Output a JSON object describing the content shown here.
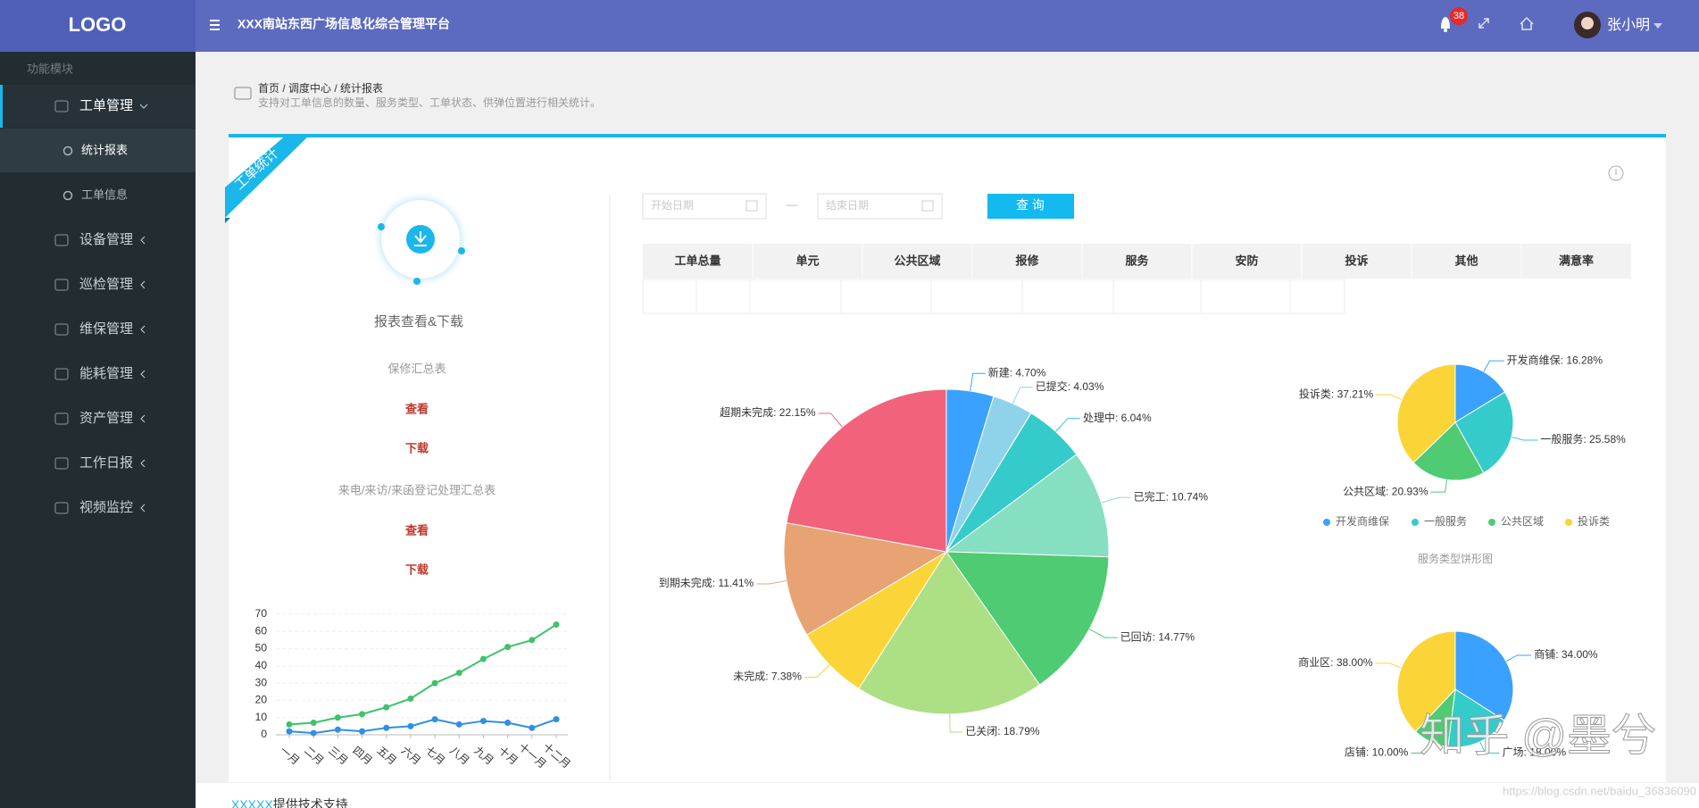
{
  "header": {
    "logo": "LOGO",
    "title": "XXX南站东西广场信息化综合管理平台",
    "badge": "38",
    "user": "张小明"
  },
  "sidebar": {
    "section": "功能模块",
    "menu": [
      {
        "label": "工单管理",
        "children": [
          "统计报表",
          "工单信息"
        ]
      },
      {
        "label": "设备管理"
      },
      {
        "label": "巡检管理"
      },
      {
        "label": "维保管理"
      },
      {
        "label": "能耗管理"
      },
      {
        "label": "资产管理"
      },
      {
        "label": "工作日报"
      },
      {
        "label": "视频监控"
      }
    ]
  },
  "breadcrumb": "首页 / 调度中心 / 统计报表",
  "description": "支持对工单信息的数量、服务类型、工单状态、供弹位置进行相关统计。",
  "ribbon": "工单统计",
  "reports": {
    "heading": "报表查看&下载",
    "items": [
      {
        "name": "保修汇总表",
        "view": "查看",
        "download": "下载"
      },
      {
        "name": "来电/来访/来函登记处理汇总表",
        "view": "查看",
        "download": "下载"
      }
    ]
  },
  "filters": {
    "start": "开始日期",
    "separator": "—",
    "end": "结束日期",
    "button": "查 询"
  },
  "table": {
    "columns": [
      "工单总量",
      "单元",
      "公共区域",
      "报修",
      "服务",
      "安防",
      "投诉",
      "其他",
      "满意率"
    ]
  },
  "chart_data": [
    {
      "type": "line",
      "categories": [
        "一月",
        "二月",
        "三月",
        "四月",
        "五月",
        "六月",
        "七月",
        "八月",
        "九月",
        "十月",
        "十一月",
        "十二月"
      ],
      "series": [
        {
          "color": "#3ec26b",
          "values": [
            6,
            7,
            10,
            12,
            16,
            21,
            30,
            36,
            44,
            51,
            55,
            64
          ]
        },
        {
          "color": "#2f8fe6",
          "values": [
            2,
            1,
            3,
            2,
            4,
            5,
            9,
            6,
            8,
            7,
            4,
            9
          ]
        }
      ],
      "ylim": [
        0,
        70
      ],
      "yticks": [
        0,
        10,
        20,
        30,
        40,
        50,
        60,
        70
      ],
      "grid": true
    },
    {
      "type": "pie",
      "values": [
        4.7,
        4.03,
        6.04,
        10.74,
        14.77,
        18.79,
        7.38,
        11.41,
        22.15
      ],
      "value_labels": [
        "新建: 4.70%",
        "已提交: 4.03%",
        "处理中: 6.04%",
        "已完工: 10.74%",
        "已回访: 14.77%",
        "已关闭: 18.79%",
        "未完成: 7.38%",
        "到期未完成: 11.41%",
        "超期未完成: 22.15%"
      ],
      "colors": [
        "#3ba1ff",
        "#8fd3ea",
        "#36cbcb",
        "#86dfc0",
        "#4ecb73",
        "#addf84",
        "#fbd437",
        "#e8a374",
        "#f2637b"
      ]
    },
    {
      "type": "pie",
      "title": "服务类型饼形图",
      "categories": [
        "开发商维保",
        "一般服务",
        "公共区域",
        "投诉类"
      ],
      "values": [
        16.28,
        25.58,
        20.93,
        37.21
      ],
      "value_labels": [
        "开发商维保: 16.28%",
        "一般服务: 25.58%",
        "公共区域: 20.93%",
        "投诉类: 37.21%"
      ],
      "colors": [
        "#3ba1ff",
        "#36cbcb",
        "#4ecb73",
        "#fbd437"
      ],
      "legend": "bottom"
    },
    {
      "type": "pie",
      "values": [
        34.0,
        18.0,
        10.0,
        38.0
      ],
      "value_labels": [
        "商铺: 34.00%",
        "广场: 18.00%",
        "店铺: 10.00%",
        "商业区: 38.00%"
      ],
      "colors": [
        "#3ba1ff",
        "#36cbcb",
        "#4ecb73",
        "#fbd437"
      ]
    }
  ],
  "footer": {
    "company": "XXXXX",
    "text": "提供技术支持"
  },
  "watermark": "知乎 @墨兮",
  "url": "https://blog.csdn.net/baidu_36836090"
}
